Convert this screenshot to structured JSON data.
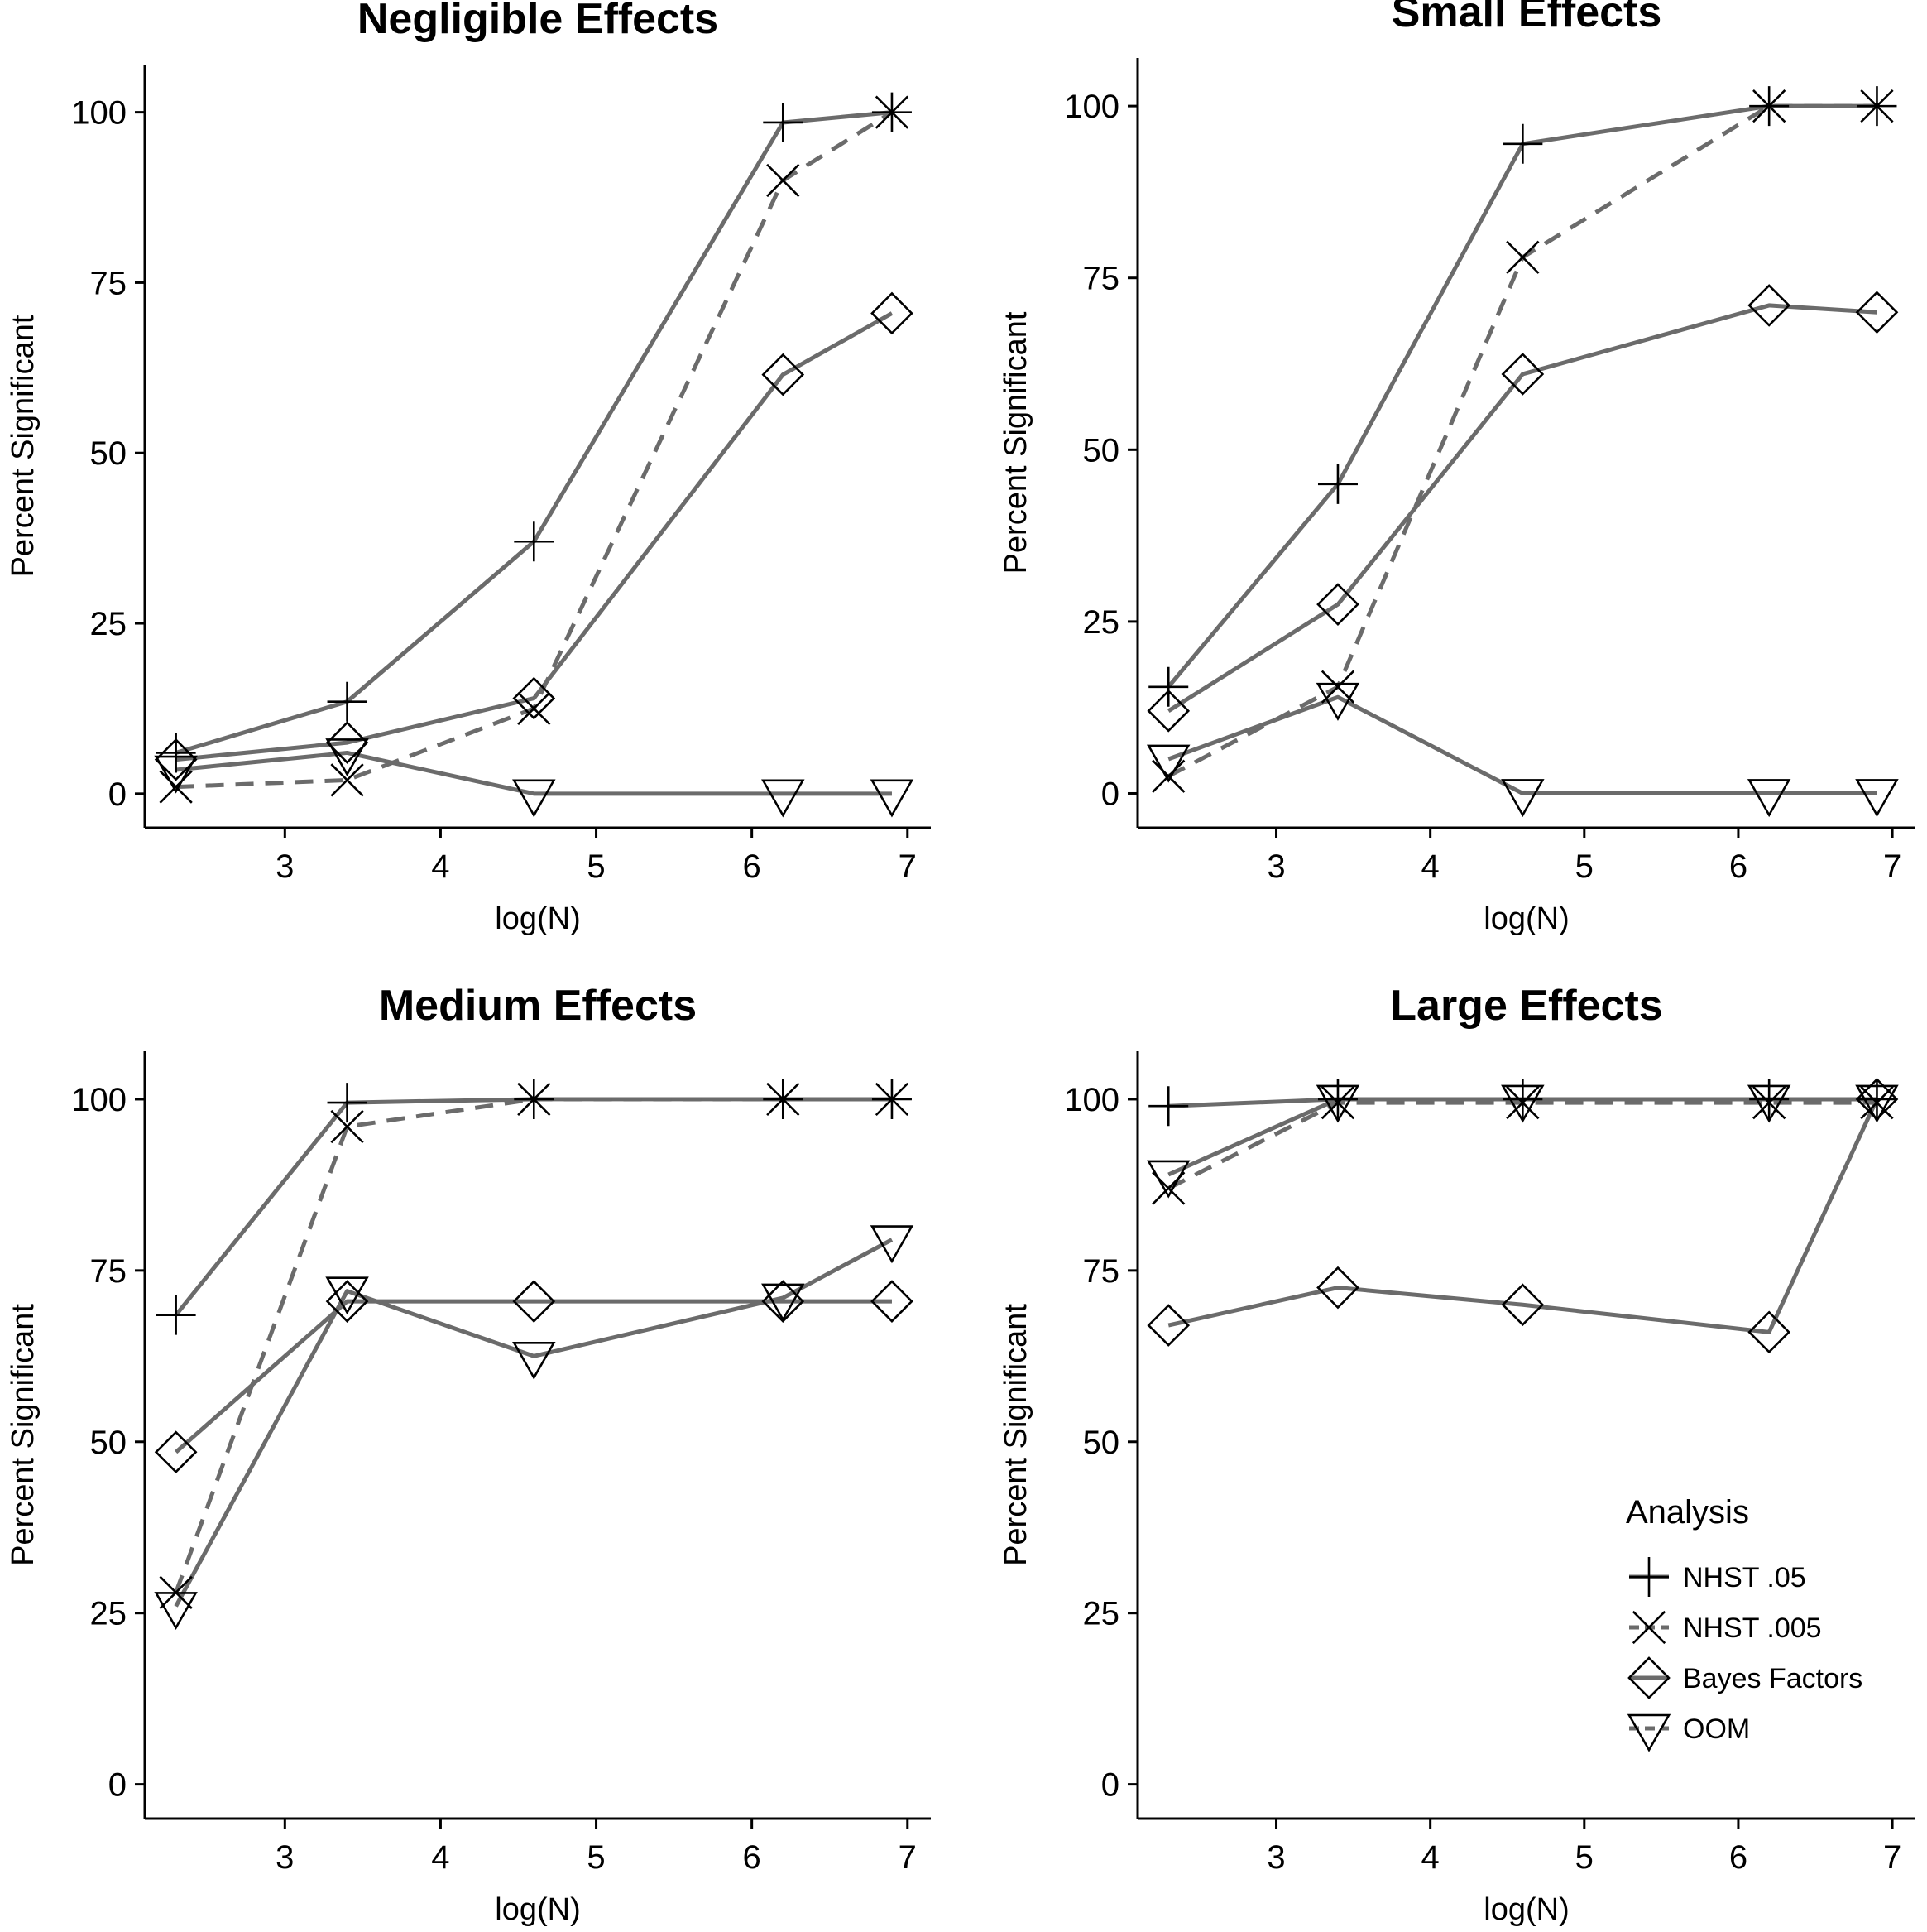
{
  "chart_data": [
    {
      "type": "line",
      "title": "Negligible Effects",
      "xlabel": "log(N)",
      "ylabel": "Percent Significant",
      "xlim": [
        2.1,
        7.15
      ],
      "ylim": [
        -5,
        107
      ],
      "xticks": [
        3,
        4,
        5,
        6,
        7
      ],
      "yticks": [
        0,
        25,
        50,
        75,
        100
      ],
      "x": [
        2.3,
        3.4,
        4.6,
        6.2,
        6.9
      ],
      "series": [
        {
          "name": "NHST .05",
          "values": [
            6,
            13.5,
            37,
            98.5,
            100
          ]
        },
        {
          "name": "NHST .005",
          "values": [
            1,
            2,
            12.5,
            90,
            100
          ]
        },
        {
          "name": "Bayes Factors",
          "values": [
            5,
            7.5,
            14,
            61.5,
            70.5
          ]
        },
        {
          "name": "OOM",
          "values": [
            3.5,
            6,
            0,
            0,
            0
          ]
        }
      ]
    },
    {
      "type": "line",
      "title": "Small Effects",
      "xlabel": "log(N)",
      "ylabel": "Percent Significant",
      "xlim": [
        2.1,
        7.15
      ],
      "ylim": [
        -5,
        107
      ],
      "xticks": [
        3,
        4,
        5,
        6,
        7
      ],
      "yticks": [
        0,
        25,
        50,
        75,
        100
      ],
      "x": [
        2.3,
        3.4,
        4.6,
        6.2,
        6.9
      ],
      "series": [
        {
          "name": "NHST .05",
          "values": [
            15.5,
            45,
            94.5,
            100,
            100
          ]
        },
        {
          "name": "NHST .005",
          "values": [
            2.5,
            15.5,
            78,
            100,
            100
          ]
        },
        {
          "name": "Bayes Factors",
          "values": [
            12,
            27.5,
            61,
            71,
            70
          ]
        },
        {
          "name": "OOM",
          "values": [
            5,
            14,
            0,
            0,
            0
          ]
        }
      ]
    },
    {
      "type": "line",
      "title": "Medium Effects",
      "xlabel": "log(N)",
      "ylabel": "Percent Significant",
      "xlim": [
        2.1,
        7.15
      ],
      "ylim": [
        -5,
        107
      ],
      "xticks": [
        3,
        4,
        5,
        6,
        7
      ],
      "yticks": [
        0,
        25,
        50,
        75,
        100
      ],
      "x": [
        2.3,
        3.4,
        4.6,
        6.2,
        6.9
      ],
      "series": [
        {
          "name": "NHST .05",
          "values": [
            68.5,
            99.5,
            100,
            100,
            100
          ]
        },
        {
          "name": "NHST .005",
          "values": [
            28,
            96,
            100,
            100,
            100
          ]
        },
        {
          "name": "Bayes Factors",
          "values": [
            48.5,
            70.5,
            70.5,
            70.5,
            70.5
          ]
        },
        {
          "name": "OOM",
          "values": [
            26,
            72,
            62.5,
            71,
            79.5
          ]
        }
      ]
    },
    {
      "type": "line",
      "title": "Large Effects",
      "xlabel": "log(N)",
      "ylabel": "Percent Significant",
      "xlim": [
        2.1,
        7.15
      ],
      "ylim": [
        -5,
        107
      ],
      "xticks": [
        3,
        4,
        5,
        6,
        7
      ],
      "yticks": [
        0,
        25,
        50,
        75,
        100
      ],
      "x": [
        2.3,
        3.4,
        4.6,
        6.2,
        6.9
      ],
      "series": [
        {
          "name": "NHST .05",
          "values": [
            99,
            100,
            100,
            100,
            100
          ]
        },
        {
          "name": "NHST .005",
          "values": [
            87,
            99.5,
            99.5,
            99.5,
            99.5
          ]
        },
        {
          "name": "Bayes Factors",
          "values": [
            67,
            72.5,
            70,
            66,
            100
          ]
        },
        {
          "name": "OOM",
          "values": [
            89,
            100,
            100,
            100,
            100
          ]
        }
      ]
    }
  ],
  "legend": {
    "title": "Analysis",
    "placement": "bottom-right of Large Effects panel",
    "entries": [
      {
        "label": "NHST .05",
        "marker": "plus",
        "linestyle": "solid"
      },
      {
        "label": "NHST .005",
        "marker": "cross",
        "linestyle": "dashed"
      },
      {
        "label": "Bayes Factors",
        "marker": "diamond",
        "linestyle": "solid"
      },
      {
        "label": "OOM",
        "marker": "triangle-down",
        "linestyle": "dashed"
      }
    ]
  },
  "colors": {
    "line": "#6b6b6b",
    "marker": "#000000",
    "axis": "#000000",
    "background": "#ffffff"
  }
}
